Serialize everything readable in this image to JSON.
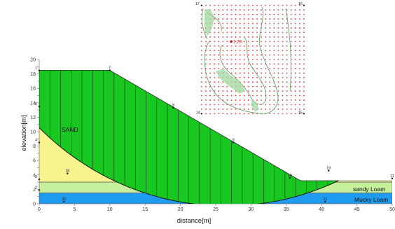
{
  "axes": {
    "xlabel": "distance[m]",
    "ylabel": "elevation[m]",
    "x_ticks": [
      0,
      5,
      10,
      15,
      20,
      25,
      30,
      35,
      40,
      45,
      50
    ],
    "y_ticks": [
      0,
      1,
      2,
      3,
      4,
      5,
      6,
      7,
      8,
      9,
      10,
      11,
      12,
      13,
      14,
      15,
      16,
      17,
      18,
      19,
      20
    ]
  },
  "layers": {
    "sand_label": "SAND",
    "sandy_label": "sandy Loam",
    "mucky_label": "Mucky Loam"
  },
  "colors": {
    "sand": "#f7f48e",
    "sandy_loam": "#c7f09c",
    "mucky_loam": "#1f9cf0",
    "slice_mass": "#18c820",
    "grid_dot": "#e53b3b",
    "contour": "#5d9a5d"
  },
  "geometry_points": {
    "ground": [
      [
        0,
        18.5
      ],
      [
        10,
        18.5
      ],
      [
        37,
        3.2
      ],
      [
        50,
        3.2
      ]
    ],
    "sandy_top": 3.0,
    "mucky_top": 1.5,
    "slip_circle": {
      "center_x": 26.5,
      "center_y": 37.5,
      "radius": 37.8
    },
    "slice_count": 28
  },
  "point_labels": [
    {
      "id": "1",
      "x": 0,
      "y": 18.5
    },
    {
      "id": "7",
      "x": 10,
      "y": 18.5
    },
    {
      "id": "5",
      "x": 0,
      "y": 13.5
    },
    {
      "id": "4",
      "x": 0,
      "y": 8.5
    },
    {
      "id": "8",
      "x": 19,
      "y": 13.3
    },
    {
      "id": "9",
      "x": 27.5,
      "y": 8.5
    },
    {
      "id": "10",
      "x": 35.5,
      "y": 3.6
    },
    {
      "id": "19",
      "x": 41,
      "y": 4.6
    },
    {
      "id": "18",
      "x": 4,
      "y": 4.2
    },
    {
      "id": "3",
      "x": 0,
      "y": 3.4
    },
    {
      "id": "2",
      "x": 0,
      "y": 1.9
    },
    {
      "id": "20",
      "x": 3.5,
      "y": 0.3
    },
    {
      "id": "21",
      "x": 40.5,
      "y": 0.3
    },
    {
      "id": "11",
      "x": 50,
      "y": 3.5
    }
  ],
  "search_grid": {
    "corners": [
      "17",
      "16",
      "14",
      "15"
    ],
    "x_range": [
      23,
      37.5
    ],
    "y_range": [
      12.5,
      27.5
    ],
    "cols": 24,
    "rows": 24,
    "center_label": "1.20",
    "center": {
      "x": 27.2,
      "y": 22.5
    }
  }
}
